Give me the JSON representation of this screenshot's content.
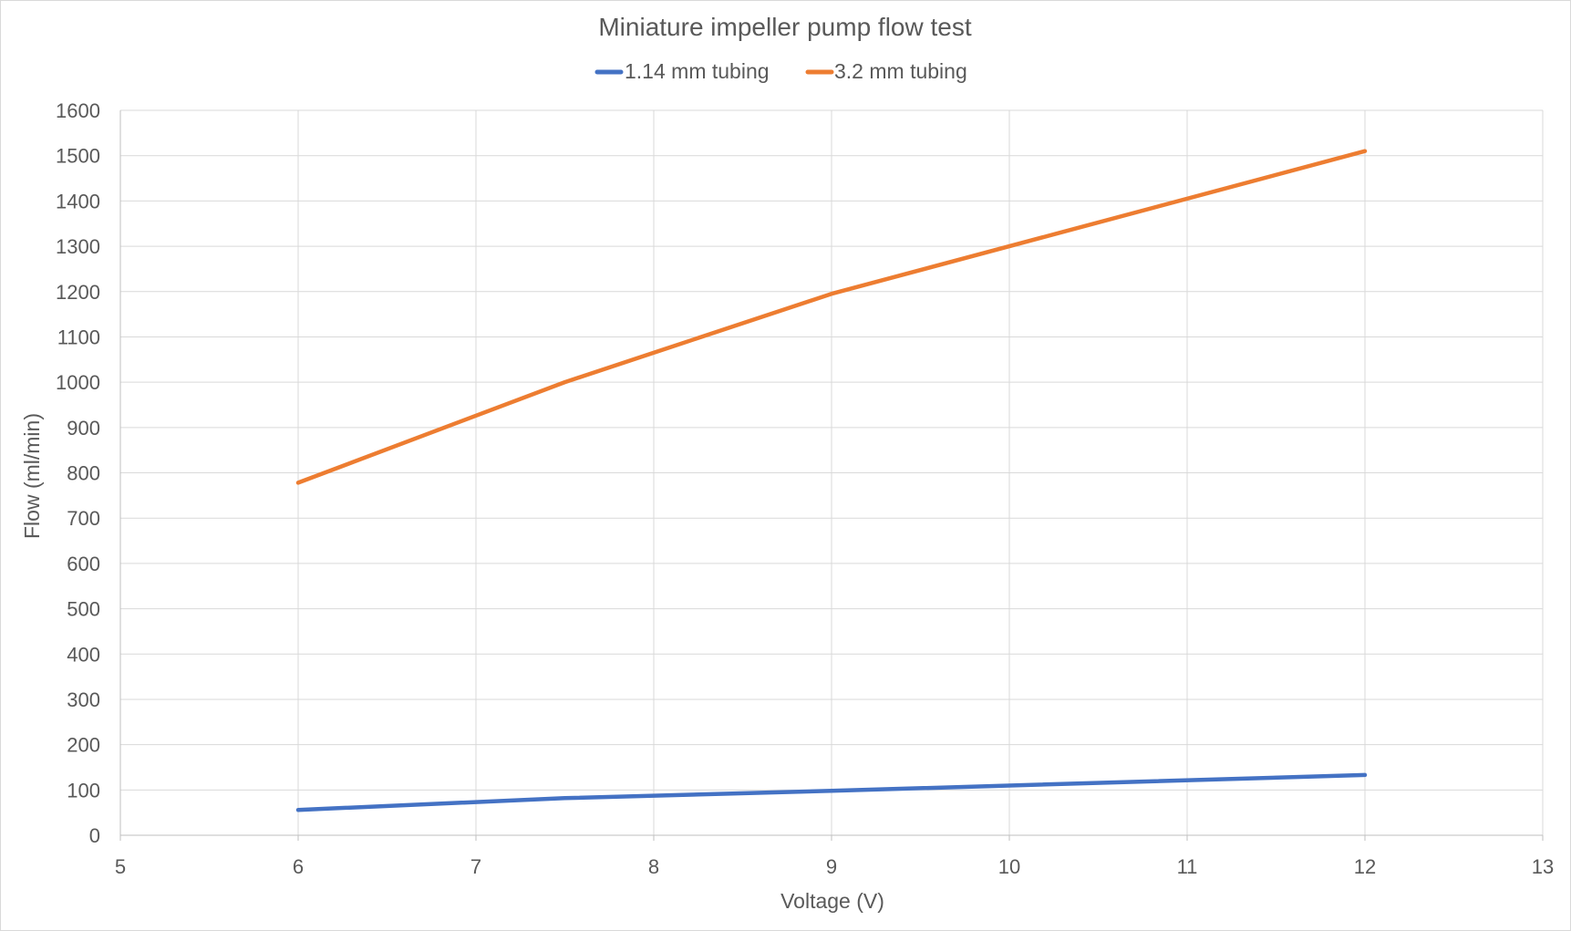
{
  "chart_data": {
    "type": "line",
    "title": "Miniature impeller pump flow test",
    "xlabel": "Voltage (V)",
    "ylabel": "Flow (ml/min)",
    "xlim": [
      5,
      13
    ],
    "ylim": [
      0,
      1600
    ],
    "xticks": [
      "5",
      "6",
      "7",
      "8",
      "9",
      "10",
      "11",
      "12",
      "13"
    ],
    "yticks": [
      "0",
      "100",
      "200",
      "300",
      "400",
      "500",
      "600",
      "700",
      "800",
      "900",
      "1000",
      "1100",
      "1200",
      "1300",
      "1400",
      "1500",
      "1600"
    ],
    "grid": true,
    "legend_position": "top",
    "series": [
      {
        "name": "1.14 mm tubing",
        "color": "#4472c4",
        "x": [
          6,
          7.5,
          9,
          12
        ],
        "y": [
          56,
          82,
          98,
          133
        ]
      },
      {
        "name": "3.2 mm tubing",
        "color": "#ed7d31",
        "x": [
          6,
          7.5,
          9,
          12
        ],
        "y": [
          778,
          1000,
          1195,
          1510
        ]
      }
    ]
  }
}
